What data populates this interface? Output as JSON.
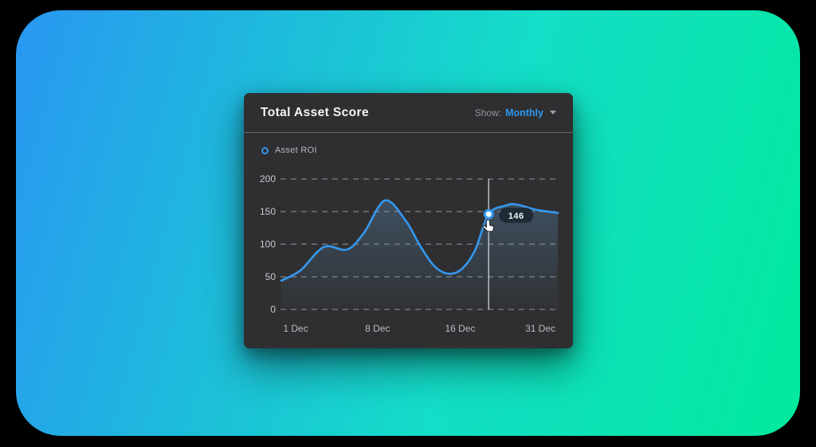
{
  "app": {
    "background_color": "#000000",
    "backdrop_gradient": [
      "#2997f1",
      "#14ddc8",
      "#02ea9d"
    ]
  },
  "card": {
    "title": "Total Asset Score",
    "show_label": "Show:",
    "period_value": "Monthly",
    "accent_color": "#2d97f0",
    "background_color": "#2f2f31",
    "legend": [
      {
        "label": "Asset ROI",
        "color": "#2f96ee"
      }
    ]
  },
  "chart_data": {
    "type": "area",
    "title": "Total Asset Score",
    "ylim": [
      0,
      200
    ],
    "y_ticks": [
      200,
      150,
      100,
      50,
      0
    ],
    "x_ticks": [
      {
        "label": "1 Dec",
        "t": 0.052
      },
      {
        "label": "8 Dec",
        "t": 0.348
      },
      {
        "label": "16 Dec",
        "t": 0.647
      },
      {
        "label": "31 Dec",
        "t": 0.937
      }
    ],
    "grid": "dashed-horizontal",
    "legend_position": "top-left",
    "series": [
      {
        "name": "Asset ROI",
        "color": "#3498f0",
        "points": [
          [
            0.0,
            44
          ],
          [
            0.07,
            60
          ],
          [
            0.13,
            88
          ],
          [
            0.17,
            97
          ],
          [
            0.24,
            92
          ],
          [
            0.3,
            118
          ],
          [
            0.375,
            167
          ],
          [
            0.45,
            136
          ],
          [
            0.5,
            99
          ],
          [
            0.55,
            68
          ],
          [
            0.6,
            55
          ],
          [
            0.65,
            61
          ],
          [
            0.7,
            90
          ],
          [
            0.75,
            146
          ],
          [
            0.81,
            159
          ],
          [
            0.85,
            161
          ],
          [
            0.92,
            153
          ],
          [
            1.0,
            148
          ]
        ]
      }
    ],
    "highlight": {
      "series": "Asset ROI",
      "t": 0.75,
      "value": 146,
      "tooltip": "146"
    }
  }
}
